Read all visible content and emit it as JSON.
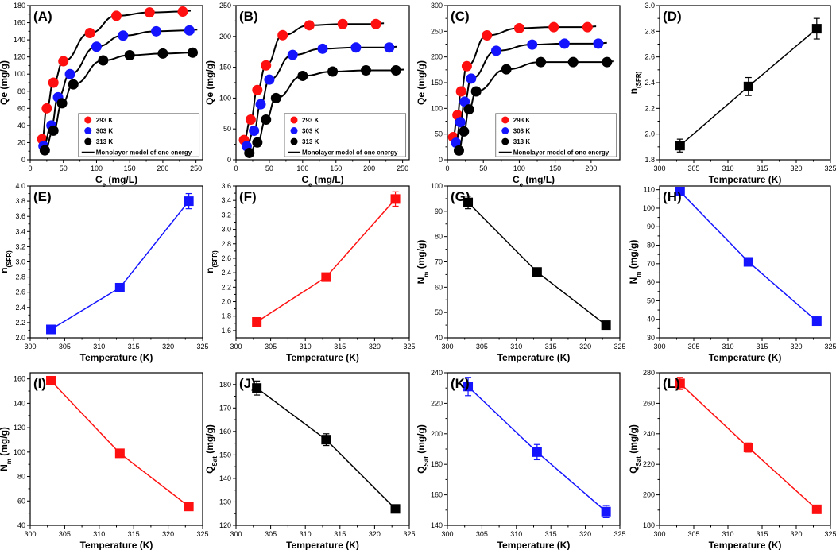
{
  "colors": {
    "red": "#ff1010",
    "blue": "#1414ff",
    "black": "#000000",
    "fit": "#000000"
  },
  "chart_data": [
    {
      "id": "A",
      "panel_label": "(A)",
      "type": "scatter",
      "xlabel": "C",
      "xlabel_sub": "e",
      "xlabel_unit": " (mg/L)",
      "ylabel": "Qe (mg/g)",
      "xlim": [
        0,
        260
      ],
      "ylim": [
        0,
        180
      ],
      "xticks": [
        0,
        50,
        100,
        150,
        200,
        250
      ],
      "yticks": [
        0,
        20,
        40,
        60,
        80,
        100,
        120,
        140,
        160,
        180
      ],
      "legend": {
        "position": "bottom-right",
        "fit_label": "Monolayer model of one energy"
      },
      "series": [
        {
          "name": "293 K",
          "color": "red",
          "x": [
            18,
            25,
            35,
            50,
            90,
            130,
            180,
            230
          ],
          "y": [
            24,
            60,
            90,
            115,
            148,
            168,
            172,
            173
          ]
        },
        {
          "name": "303 K",
          "color": "blue",
          "x": [
            20,
            32,
            42,
            60,
            100,
            140,
            190,
            240
          ],
          "y": [
            16,
            40,
            73,
            100,
            132,
            145,
            150,
            151
          ]
        },
        {
          "name": "313 K",
          "color": "black",
          "x": [
            22,
            35,
            48,
            65,
            110,
            150,
            200,
            245
          ],
          "y": [
            11,
            34,
            66,
            88,
            116,
            122,
            124,
            125
          ]
        }
      ]
    },
    {
      "id": "B",
      "panel_label": "(B)",
      "type": "scatter",
      "xlabel": "C",
      "xlabel_sub": "e",
      "xlabel_unit": " (mg/L)",
      "ylabel": "Qe (mg/g)",
      "xlim": [
        0,
        260
      ],
      "ylim": [
        0,
        250
      ],
      "xticks": [
        0,
        50,
        100,
        150,
        200,
        250
      ],
      "yticks": [
        0,
        50,
        100,
        150,
        200,
        250
      ],
      "legend": {
        "position": "bottom-right",
        "fit_label": "Monolayer model of one energy"
      },
      "series": [
        {
          "name": "293 K",
          "color": "red",
          "x": [
            12,
            22,
            32,
            45,
            70,
            110,
            160,
            210
          ],
          "y": [
            32,
            65,
            113,
            153,
            202,
            218,
            220,
            220
          ]
        },
        {
          "name": "303 K",
          "color": "blue",
          "x": [
            16,
            27,
            37,
            50,
            85,
            130,
            180,
            230
          ],
          "y": [
            22,
            47,
            90,
            130,
            170,
            180,
            182,
            182
          ]
        },
        {
          "name": "313 K",
          "color": "black",
          "x": [
            20,
            32,
            45,
            60,
            100,
            145,
            195,
            240
          ],
          "y": [
            11,
            28,
            65,
            100,
            136,
            143,
            145,
            145
          ]
        }
      ]
    },
    {
      "id": "C",
      "panel_label": "(C)",
      "type": "scatter",
      "xlabel": "C",
      "xlabel_sub": "e",
      "xlabel_unit": " (mg/L)",
      "ylabel": "Qe (mg/g)",
      "xlim": [
        0,
        240
      ],
      "ylim": [
        0,
        300
      ],
      "xticks": [
        0,
        50,
        100,
        150,
        200
      ],
      "yticks": [
        0,
        50,
        100,
        150,
        200,
        250,
        300
      ],
      "legend": {
        "position": "bottom-right",
        "fit_label": "Monolayer model of one energy"
      },
      "series": [
        {
          "name": "293 K",
          "color": "red",
          "x": [
            8,
            14,
            19,
            27,
            55,
            100,
            148,
            195
          ],
          "y": [
            44,
            87,
            133,
            182,
            242,
            256,
            258,
            258
          ]
        },
        {
          "name": "303 K",
          "color": "blue",
          "x": [
            12,
            18,
            24,
            33,
            68,
            118,
            163,
            210
          ],
          "y": [
            33,
            73,
            113,
            158,
            212,
            224,
            226,
            226
          ]
        },
        {
          "name": "313 K",
          "color": "black",
          "x": [
            16,
            23,
            30,
            40,
            82,
            130,
            175,
            222
          ],
          "y": [
            18,
            55,
            98,
            133,
            176,
            190,
            190,
            190
          ]
        }
      ]
    },
    {
      "id": "D",
      "panel_label": "(D)",
      "type": "line",
      "color": "black",
      "xlabel": "Temperature (K)",
      "ylabel": "n",
      "ylabel_sub": "(SFR)",
      "xlim": [
        300,
        325
      ],
      "ylim": [
        1.8,
        3.0
      ],
      "xticks": [
        300,
        305,
        310,
        315,
        320,
        325
      ],
      "yticks": [
        1.8,
        2.0,
        2.2,
        2.4,
        2.6,
        2.8,
        3.0
      ],
      "x": [
        303,
        313,
        323
      ],
      "y": [
        1.91,
        2.37,
        2.82
      ],
      "err": [
        0.05,
        0.07,
        0.08
      ]
    },
    {
      "id": "E",
      "panel_label": "(E)",
      "type": "line",
      "color": "blue",
      "xlabel": "Temperature (K)",
      "ylabel": "n",
      "ylabel_sub": "(SFR)",
      "xlim": [
        300,
        325
      ],
      "ylim": [
        2.0,
        4.0
      ],
      "xticks": [
        300,
        305,
        310,
        315,
        320,
        325
      ],
      "yticks": [
        2.0,
        2.2,
        2.4,
        2.6,
        2.8,
        3.0,
        3.2,
        3.4,
        3.6,
        3.8,
        4.0
      ],
      "x": [
        303,
        313,
        323
      ],
      "y": [
        2.11,
        2.66,
        3.8
      ],
      "err": [
        0.02,
        0.05,
        0.1
      ]
    },
    {
      "id": "F",
      "panel_label": "(F)",
      "type": "line",
      "color": "red",
      "xlabel": "Temperature (K)",
      "ylabel": "n",
      "ylabel_sub": "(SFR)",
      "xlim": [
        300,
        325
      ],
      "ylim": [
        1.5,
        3.6
      ],
      "xticks": [
        300,
        305,
        310,
        315,
        320,
        325
      ],
      "yticks": [
        1.6,
        1.8,
        2.0,
        2.2,
        2.4,
        2.6,
        2.8,
        3.0,
        3.2,
        3.4,
        3.6
      ],
      "x": [
        303,
        313,
        323
      ],
      "y": [
        1.72,
        2.34,
        3.42
      ],
      "err": [
        0.02,
        0.02,
        0.1
      ]
    },
    {
      "id": "G",
      "panel_label": "(G)",
      "type": "line",
      "color": "black",
      "xlabel": "Temperature (K)",
      "ylabel": "N",
      "ylabel_sub": "m",
      "ylabel_unit": " (mg/g)",
      "xlim": [
        300,
        325
      ],
      "ylim": [
        40,
        100
      ],
      "xticks": [
        300,
        305,
        310,
        315,
        320,
        325
      ],
      "yticks": [
        40,
        50,
        60,
        70,
        80,
        90,
        100
      ],
      "x": [
        303,
        313,
        323
      ],
      "y": [
        93.5,
        66,
        45
      ],
      "err": [
        2.5,
        0.5,
        0.5
      ]
    },
    {
      "id": "H",
      "panel_label": "(H)",
      "type": "line",
      "color": "blue",
      "xlabel": "Temperature (K)",
      "ylabel": "N",
      "ylabel_sub": "m",
      "ylabel_unit": " (mg/g)",
      "xlim": [
        300,
        325
      ],
      "ylim": [
        30,
        112
      ],
      "xticks": [
        300,
        305,
        310,
        315,
        320,
        325
      ],
      "yticks": [
        30,
        40,
        50,
        60,
        70,
        80,
        90,
        100,
        110
      ],
      "x": [
        303,
        313,
        323
      ],
      "y": [
        109,
        71,
        39
      ],
      "err": [
        2,
        0.5,
        0.5
      ]
    },
    {
      "id": "I",
      "panel_label": "(I)",
      "type": "line",
      "color": "red",
      "xlabel": "Temperature (K)",
      "ylabel": "N",
      "ylabel_sub": "m",
      "ylabel_unit": " (mg/g)",
      "xlim": [
        300,
        325
      ],
      "ylim": [
        40,
        165
      ],
      "xticks": [
        300,
        305,
        310,
        315,
        320,
        325
      ],
      "yticks": [
        40,
        60,
        80,
        100,
        120,
        140,
        160
      ],
      "x": [
        303,
        313,
        323
      ],
      "y": [
        158.5,
        99,
        55.5
      ],
      "err": [
        3,
        1,
        1
      ]
    },
    {
      "id": "J",
      "panel_label": "(J)",
      "type": "line",
      "color": "black",
      "xlabel": "Temperature (K)",
      "ylabel": "Q",
      "ylabel_sub": "Sat",
      "ylabel_unit": " (mg/g)",
      "xlim": [
        300,
        325
      ],
      "ylim": [
        120,
        185
      ],
      "xticks": [
        300,
        305,
        310,
        315,
        320,
        325
      ],
      "yticks": [
        120,
        130,
        140,
        150,
        160,
        170,
        180
      ],
      "x": [
        303,
        313,
        323
      ],
      "y": [
        178.5,
        156.5,
        127
      ],
      "err": [
        3,
        2.5,
        1
      ]
    },
    {
      "id": "K",
      "panel_label": "(K)",
      "type": "line",
      "color": "blue",
      "xlabel": "Temperature (K)",
      "ylabel": "Q",
      "ylabel_sub": "Sat",
      "ylabel_unit": " (mg/g)",
      "xlim": [
        300,
        325
      ],
      "ylim": [
        140,
        240
      ],
      "xticks": [
        300,
        305,
        310,
        315,
        320,
        325
      ],
      "yticks": [
        140,
        160,
        180,
        200,
        220,
        240
      ],
      "x": [
        303,
        313,
        323
      ],
      "y": [
        231,
        188,
        149
      ],
      "err": [
        6,
        5,
        4
      ]
    },
    {
      "id": "L",
      "panel_label": "(L)",
      "type": "line",
      "color": "red",
      "xlabel": "Temperature (K)",
      "ylabel": "Q",
      "ylabel_sub": "Sat",
      "ylabel_unit": " (mg/g)",
      "xlim": [
        300,
        325
      ],
      "ylim": [
        180,
        280
      ],
      "xticks": [
        300,
        305,
        310,
        315,
        320,
        325
      ],
      "yticks": [
        180,
        200,
        220,
        240,
        260,
        280
      ],
      "x": [
        303,
        313,
        323
      ],
      "y": [
        273,
        231,
        190.5
      ],
      "err": [
        4,
        3,
        2
      ]
    }
  ]
}
